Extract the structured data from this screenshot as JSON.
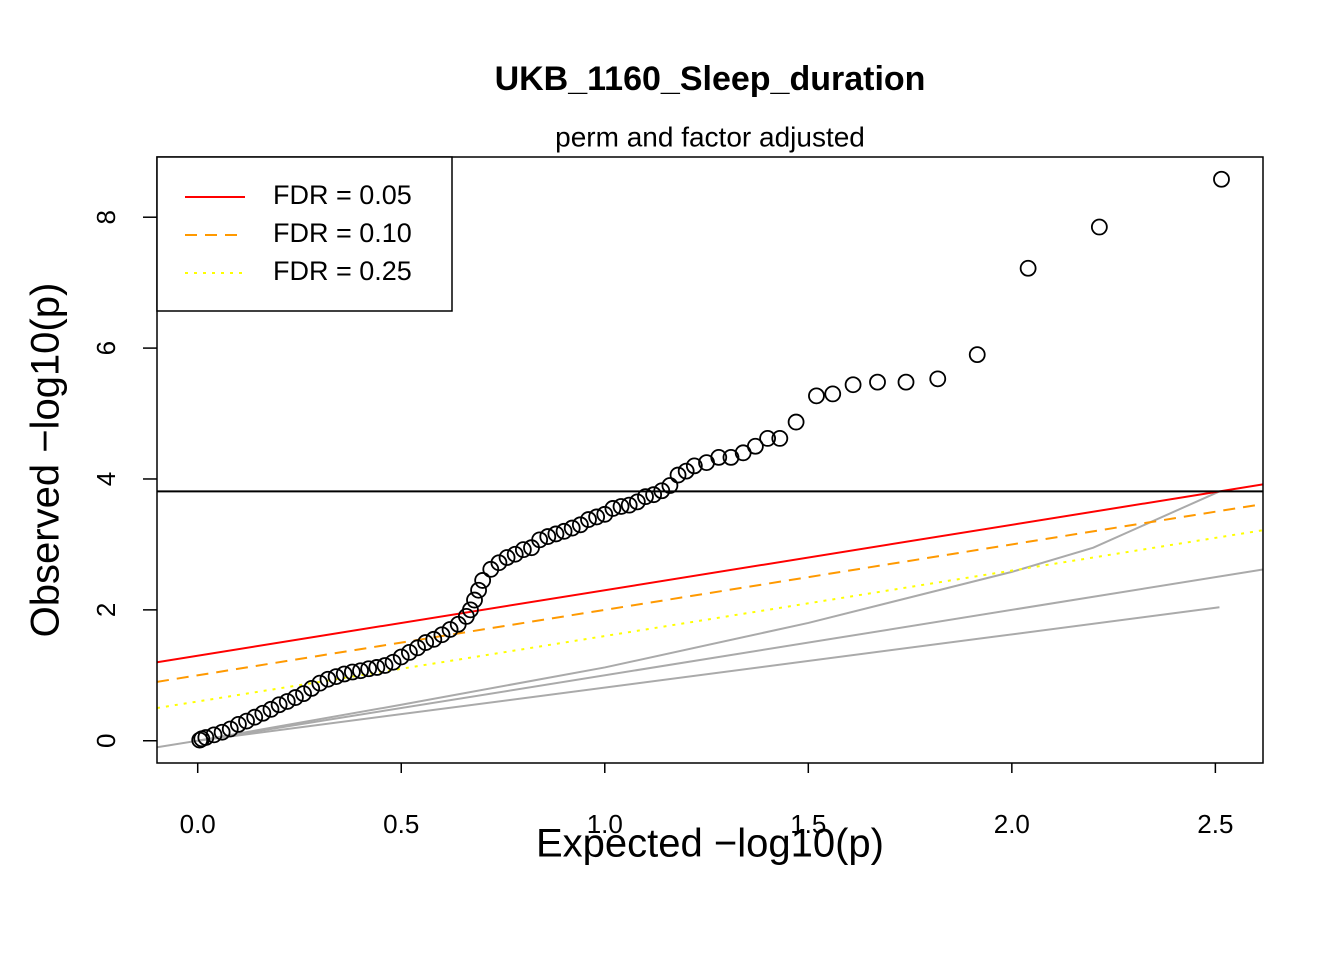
{
  "chart_data": {
    "type": "scatter",
    "title": "UKB_1160_Sleep_duration",
    "subtitle": "perm and factor adjusted",
    "xlabel": "Expected  −log10(p)",
    "ylabel": "Observed  −log10(p)",
    "x": [
      2.515,
      2.215,
      2.04,
      1.915,
      1.818,
      1.74,
      1.67,
      1.61,
      1.56,
      1.52,
      1.47,
      1.43,
      1.4,
      1.37,
      1.34,
      1.31,
      1.28,
      1.25,
      1.22,
      1.2,
      1.18,
      1.16,
      1.14,
      1.12,
      1.1,
      1.08,
      1.06,
      1.04,
      1.02,
      1.0,
      0.98,
      0.96,
      0.94,
      0.92,
      0.9,
      0.88,
      0.86,
      0.84,
      0.82,
      0.8,
      0.78,
      0.76,
      0.74,
      0.72,
      0.7,
      0.69,
      0.68,
      0.67,
      0.66,
      0.64,
      0.62,
      0.6,
      0.58,
      0.56,
      0.54,
      0.52,
      0.5,
      0.48,
      0.46,
      0.44,
      0.42,
      0.4,
      0.38,
      0.36,
      0.34,
      0.32,
      0.3,
      0.28,
      0.26,
      0.24,
      0.22,
      0.2,
      0.18,
      0.16,
      0.14,
      0.12,
      0.1,
      0.08,
      0.06,
      0.04,
      0.02,
      0.01,
      0.005
    ],
    "values": [
      8.58,
      7.85,
      7.22,
      5.9,
      5.53,
      5.48,
      5.48,
      5.44,
      5.3,
      5.27,
      4.87,
      4.62,
      4.62,
      4.5,
      4.4,
      4.33,
      4.33,
      4.25,
      4.2,
      4.12,
      4.06,
      3.9,
      3.82,
      3.76,
      3.73,
      3.65,
      3.6,
      3.58,
      3.55,
      3.46,
      3.42,
      3.38,
      3.3,
      3.25,
      3.2,
      3.16,
      3.12,
      3.07,
      2.95,
      2.92,
      2.85,
      2.8,
      2.72,
      2.62,
      2.45,
      2.3,
      2.15,
      2.0,
      1.9,
      1.78,
      1.7,
      1.62,
      1.55,
      1.5,
      1.42,
      1.35,
      1.28,
      1.2,
      1.15,
      1.12,
      1.1,
      1.07,
      1.05,
      1.02,
      0.98,
      0.94,
      0.88,
      0.8,
      0.72,
      0.66,
      0.6,
      0.55,
      0.48,
      0.42,
      0.36,
      0.3,
      0.25,
      0.18,
      0.13,
      0.09,
      0.05,
      0.03,
      0.01
    ],
    "color": "#000000",
    "xlim": [
      -0.1,
      2.617
    ],
    "ylim": [
      -0.34,
      8.92
    ],
    "xticks": [
      {
        "value": 0,
        "label": "0.0"
      },
      0.5,
      {
        "value": 1,
        "label": "1.0"
      },
      1.5,
      {
        "value": 2,
        "label": "2.0"
      },
      2.5
    ],
    "yticks": [
      0,
      2,
      4,
      6,
      8
    ],
    "threshold": 3.81,
    "fdr_lines": [
      {
        "name": "FDR = 0.05",
        "color": "#ff0000",
        "dash": "solid",
        "intercept": 1.3,
        "slope": 1
      },
      {
        "name": "FDR = 0.10",
        "color": "#ff9900",
        "dash": "dashed",
        "intercept": 1.0,
        "slope": 1
      },
      {
        "name": "FDR = 0.25",
        "color": "#ffff00",
        "dash": "dotted",
        "intercept": 0.6,
        "slope": 1
      }
    ],
    "reference_lines": [
      {
        "color": "#aaaaaa",
        "x": [
          -0.1,
          2.617
        ],
        "y": [
          -0.1,
          2.617
        ]
      },
      {
        "color": "#aaaaaa",
        "x": [
          0,
          0.5,
          1.0,
          1.5,
          2.0,
          2.2,
          2.51
        ],
        "y": [
          0,
          0.55,
          1.12,
          1.8,
          2.58,
          2.95,
          3.81
        ]
      },
      {
        "color": "#aaaaaa",
        "x": [
          0,
          2.51
        ],
        "y": [
          0,
          2.04
        ]
      }
    ],
    "legend": "top-left"
  }
}
